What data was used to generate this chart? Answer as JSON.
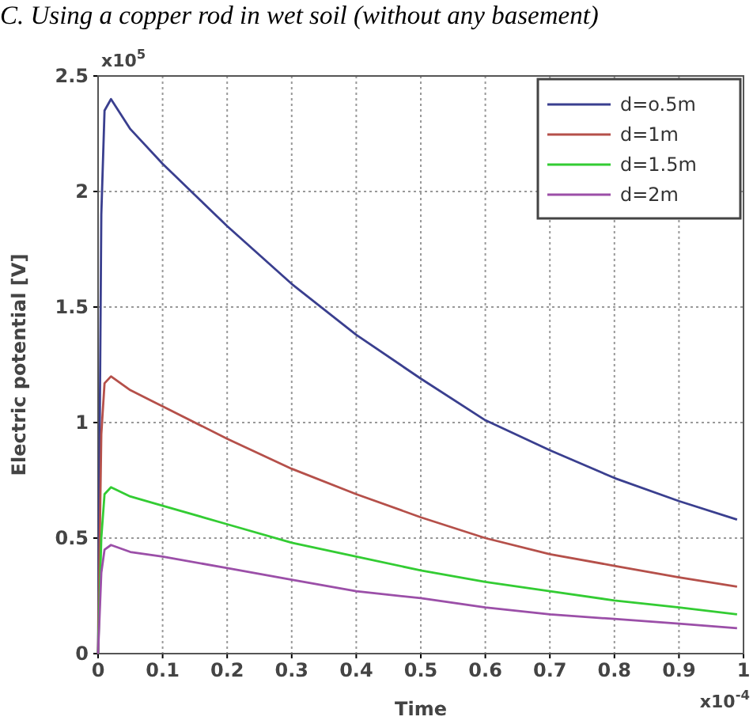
{
  "chart_data": {
    "type": "line",
    "title": "C. Using a copper rod in wet soil (without any basement)",
    "xlabel": "Time",
    "ylabel": "Electric potential [V]",
    "x": [
      0,
      0.005,
      0.01,
      0.02,
      0.05,
      0.1,
      0.2,
      0.3,
      0.4,
      0.5,
      0.6,
      0.7,
      0.8,
      0.9,
      0.99
    ],
    "series": [
      {
        "name": "d=o.5m",
        "color": "#3a3f8f",
        "values": [
          0,
          1.9,
          2.35,
          2.4,
          2.27,
          2.12,
          1.85,
          1.6,
          1.38,
          1.19,
          1.01,
          0.88,
          0.76,
          0.66,
          0.58
        ]
      },
      {
        "name": "d=1m",
        "color": "#b5504a",
        "values": [
          0,
          0.95,
          1.17,
          1.2,
          1.14,
          1.07,
          0.93,
          0.8,
          0.69,
          0.59,
          0.5,
          0.43,
          0.38,
          0.33,
          0.29
        ]
      },
      {
        "name": "d=1.5m",
        "color": "#33cc33",
        "values": [
          0,
          0.5,
          0.69,
          0.72,
          0.68,
          0.64,
          0.56,
          0.48,
          0.42,
          0.36,
          0.31,
          0.27,
          0.23,
          0.2,
          0.17
        ]
      },
      {
        "name": "d=2m",
        "color": "#9b4fa8",
        "values": [
          0,
          0.35,
          0.45,
          0.47,
          0.44,
          0.42,
          0.37,
          0.32,
          0.27,
          0.24,
          0.2,
          0.17,
          0.15,
          0.13,
          0.11
        ]
      }
    ],
    "xlim": [
      0,
      1
    ],
    "xticks": [
      0,
      0.1,
      0.2,
      0.3,
      0.4,
      0.5,
      0.6,
      0.7,
      0.8,
      0.9,
      1
    ],
    "ylim": [
      0,
      2.5
    ],
    "yticks": [
      0,
      0.5,
      1,
      1.5,
      2,
      2.5
    ],
    "annotations": [
      "x10$^{5}$",
      "x10$^{-4}$"
    ],
    "grid": true,
    "legend": "top right",
    "marker": "none",
    "line_style": "solid"
  }
}
